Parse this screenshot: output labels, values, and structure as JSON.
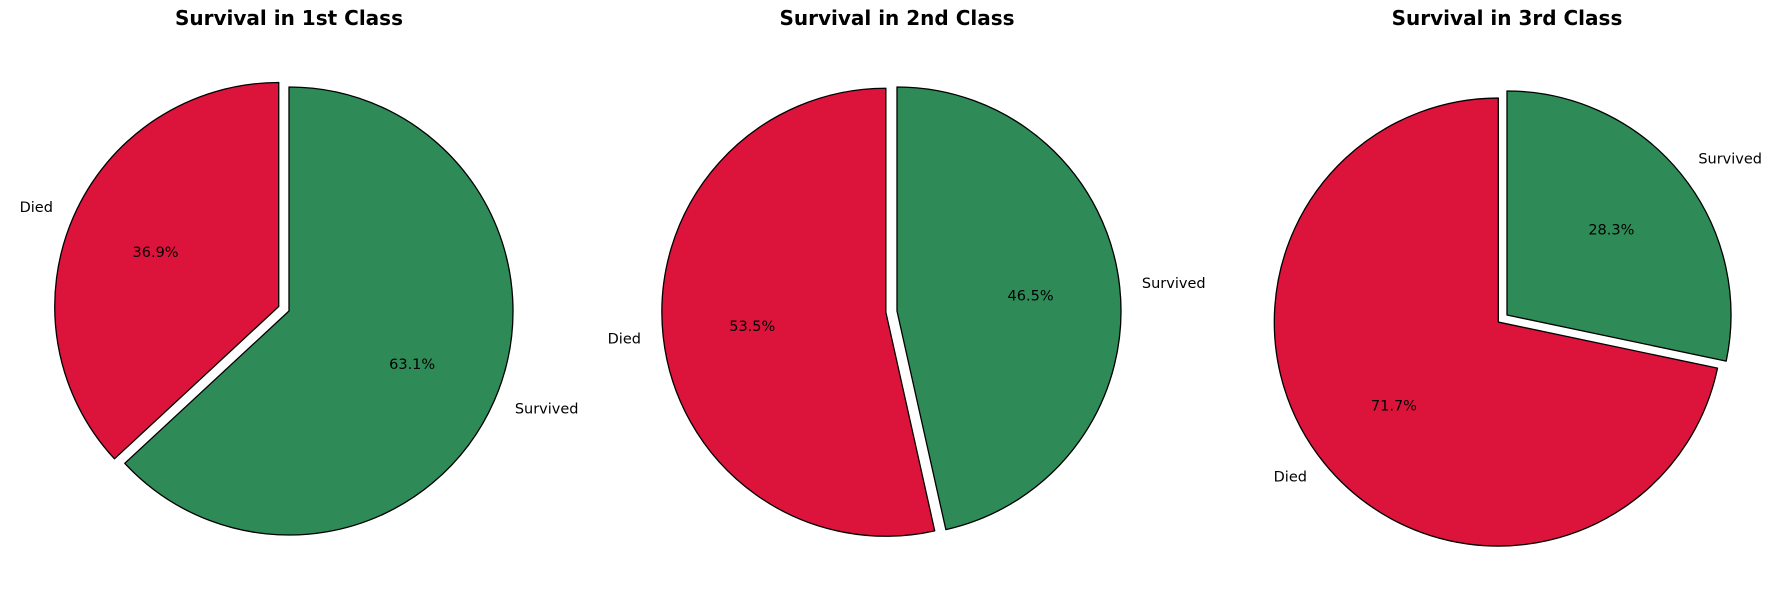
{
  "chart_data": [
    {
      "type": "pie",
      "title": "Survival in 1st Class",
      "labels": [
        "Died",
        "Survived"
      ],
      "values": [
        36.9,
        63.1
      ],
      "percent_labels": [
        "36.9%",
        "63.1%"
      ],
      "colors": [
        "#dc143c",
        "#2e8b57"
      ],
      "start_angle": 90,
      "direction": "counterclockwise",
      "explode": [
        0.05,
        0
      ]
    },
    {
      "type": "pie",
      "title": "Survival in 2nd Class",
      "labels": [
        "Died",
        "Survived"
      ],
      "values": [
        53.5,
        46.5
      ],
      "percent_labels": [
        "53.5%",
        "46.5%"
      ],
      "colors": [
        "#dc143c",
        "#2e8b57"
      ],
      "start_angle": 90,
      "direction": "counterclockwise",
      "explode": [
        0.05,
        0
      ]
    },
    {
      "type": "pie",
      "title": "Survival in 3rd Class",
      "labels": [
        "Died",
        "Survived"
      ],
      "values": [
        71.7,
        28.3
      ],
      "percent_labels": [
        "71.7%",
        "28.3%"
      ],
      "colors": [
        "#dc143c",
        "#2e8b57"
      ],
      "start_angle": 90,
      "direction": "counterclockwise",
      "explode": [
        0.05,
        0
      ]
    }
  ]
}
